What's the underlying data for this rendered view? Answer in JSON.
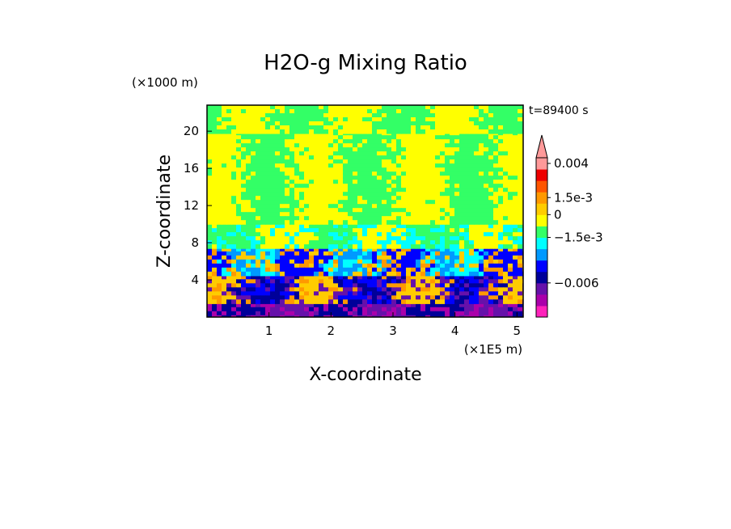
{
  "chart_data": {
    "type": "heatmap",
    "title": "H2O-g Mixing Ratio",
    "time_label": "t=89400 s",
    "xlabel": "X-coordinate",
    "ylabel": "Z-coordinate",
    "x_scale_label": "(×1E5 m)",
    "y_scale_label": "(×1000 m)",
    "xlim": [
      0,
      5.1
    ],
    "ylim": [
      0,
      22.8
    ],
    "x_ticks": [
      {
        "value": 1,
        "label": "1"
      },
      {
        "value": 2,
        "label": "2"
      },
      {
        "value": 3,
        "label": "3"
      },
      {
        "value": 4,
        "label": "4"
      },
      {
        "value": 5,
        "label": "5"
      }
    ],
    "y_ticks": [
      {
        "value": 4,
        "label": "4"
      },
      {
        "value": 8,
        "label": "8"
      },
      {
        "value": 12,
        "label": "12"
      },
      {
        "value": 16,
        "label": "16"
      },
      {
        "value": 20,
        "label": "20"
      }
    ],
    "colorbar": {
      "levels": [
        {
          "color": "#ff22bb"
        },
        {
          "color": "#aa00aa"
        },
        {
          "color": "#6611aa"
        },
        {
          "color": "#000099"
        },
        {
          "color": "#0000ff"
        },
        {
          "color": "#0099ff"
        },
        {
          "color": "#00ffff"
        },
        {
          "color": "#33ff66"
        },
        {
          "color": "#ffff00"
        },
        {
          "color": "#ffcc00"
        },
        {
          "color": "#ff9900"
        },
        {
          "color": "#ff5500"
        },
        {
          "color": "#ee0000"
        },
        {
          "color": "#ff9999"
        }
      ],
      "labels": [
        {
          "text": "0.004",
          "at_index": 13
        },
        {
          "text": "1.5e-3",
          "at_index": 10
        },
        {
          "text": "0",
          "at_index": 8.5
        },
        {
          "text": "−1.5e-3",
          "at_index": 6.5
        },
        {
          "text": "−0.006",
          "at_index": 2.5
        }
      ],
      "extend": "max"
    },
    "field_bands": [
      {
        "z_range": [
          0,
          1.5
        ],
        "colors": [
          "#6611aa",
          "#aa00aa",
          "#000099"
        ]
      },
      {
        "z_range": [
          1.5,
          4.5
        ],
        "colors": [
          "#0000ff",
          "#000099",
          "#6611aa",
          "#ff9900",
          "#ffcc00"
        ]
      },
      {
        "z_range": [
          4.5,
          7.5
        ],
        "colors": [
          "#00ffff",
          "#0099ff",
          "#ffcc00",
          "#ff9900",
          "#0000ff"
        ]
      },
      {
        "z_range": [
          7.5,
          10
        ],
        "colors": [
          "#33ff66",
          "#00ffff",
          "#ffff00"
        ]
      },
      {
        "z_range": [
          10,
          20
        ],
        "colors": [
          "#ffff00",
          "#33ff66"
        ]
      },
      {
        "z_range": [
          20,
          22.8
        ],
        "colors": [
          "#33ff66",
          "#ffff00"
        ]
      }
    ],
    "grid": false,
    "legend": "right"
  }
}
